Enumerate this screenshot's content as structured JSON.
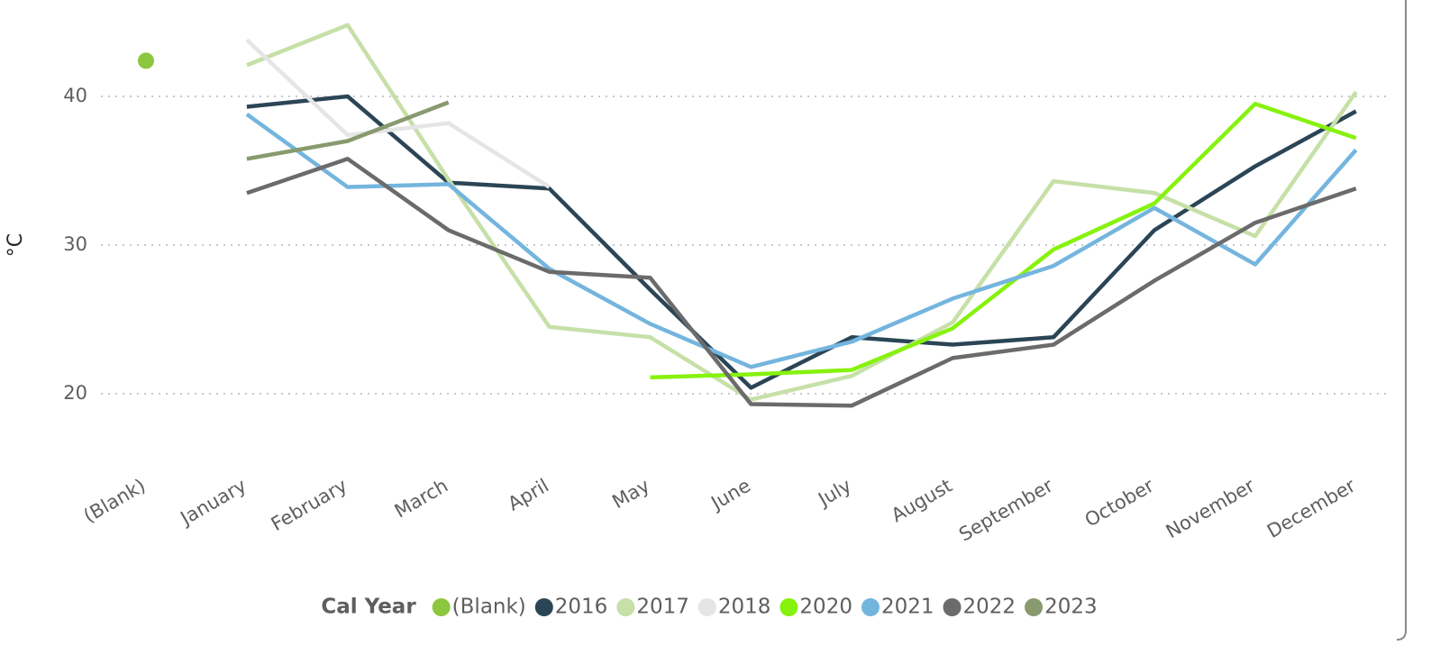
{
  "chart_data": {
    "type": "line",
    "y_label": "°C",
    "legend_title": "Cal Year",
    "categories": [
      "(Blank)",
      "January",
      "February",
      "March",
      "April",
      "May",
      "June",
      "July",
      "August",
      "September",
      "October",
      "November",
      "December"
    ],
    "series": [
      {
        "name": "(Blank)",
        "color": "#8dc63f",
        "values": [
          42.4,
          null,
          null,
          null,
          null,
          null,
          null,
          null,
          null,
          null,
          null,
          null,
          null
        ]
      },
      {
        "name": "2016",
        "color": "#2b4556",
        "values": [
          null,
          39.3,
          40.0,
          34.2,
          33.8,
          27.0,
          20.4,
          23.8,
          23.3,
          23.8,
          31.0,
          35.3,
          39.0
        ]
      },
      {
        "name": "2017",
        "color": "#c6e0a8",
        "values": [
          null,
          42.1,
          44.8,
          34.4,
          24.5,
          23.8,
          19.6,
          21.2,
          24.8,
          34.3,
          33.5,
          30.6,
          40.3
        ]
      },
      {
        "name": "2018",
        "color": "#e6e5e6",
        "values": [
          null,
          43.8,
          37.4,
          38.2,
          33.9,
          null,
          null,
          null,
          null,
          null,
          null,
          null,
          null
        ]
      },
      {
        "name": "2020",
        "color": "#86f20d",
        "values": [
          null,
          null,
          null,
          null,
          null,
          21.1,
          21.3,
          21.6,
          24.4,
          29.7,
          32.8,
          39.5,
          37.2
        ]
      },
      {
        "name": "2021",
        "color": "#74b5de",
        "values": [
          null,
          38.8,
          33.9,
          34.1,
          28.4,
          24.7,
          21.8,
          23.5,
          26.4,
          28.6,
          32.5,
          28.7,
          36.4
        ]
      },
      {
        "name": "2022",
        "color": "#6b6b6b",
        "values": [
          null,
          33.5,
          35.8,
          31.0,
          28.2,
          27.8,
          19.3,
          19.2,
          22.4,
          23.3,
          27.6,
          31.5,
          33.8
        ]
      },
      {
        "name": "2023",
        "color": "#889a6e",
        "values": [
          null,
          35.8,
          37.0,
          39.6,
          null,
          null,
          null,
          null,
          null,
          null,
          null,
          null,
          null
        ]
      }
    ],
    "ylim": [
      16,
      46
    ],
    "yticks": [
      20,
      30,
      40
    ],
    "grid": true
  }
}
